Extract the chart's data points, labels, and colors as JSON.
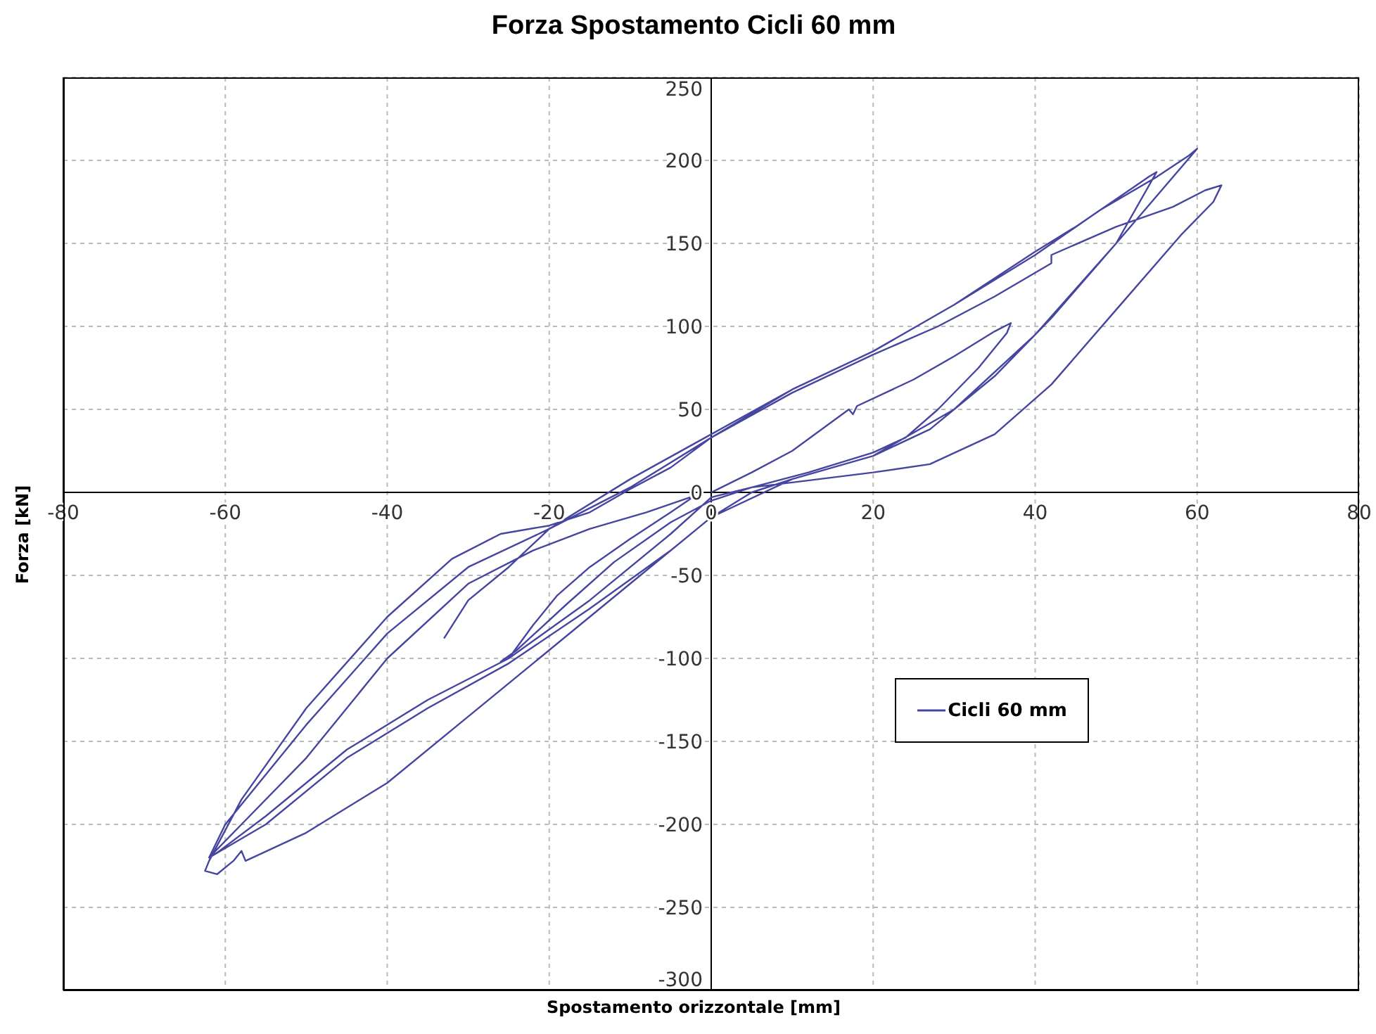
{
  "chart_data": {
    "type": "line",
    "title": "Forza Spostamento Cicli 60 mm",
    "xlabel": "Spostamento orizzontale [mm]",
    "ylabel": "Forza [kN]",
    "xlim": [
      -80,
      80
    ],
    "ylim": [
      -300,
      250
    ],
    "xticks": [
      -80,
      -60,
      -40,
      -20,
      0,
      20,
      40,
      60,
      80
    ],
    "yticks": [
      -300,
      -250,
      -200,
      -150,
      -100,
      -50,
      0,
      50,
      100,
      150,
      200,
      250
    ],
    "grid": true,
    "legend": "right",
    "series": [
      {
        "name": "Cicli 60 mm",
        "color": "#4646a0",
        "x": [
          0,
          5,
          10,
          17,
          17.5,
          18,
          25,
          30,
          35,
          37,
          36.5,
          33,
          28,
          24,
          20,
          12,
          5,
          0,
          -5,
          -12,
          -18,
          -24,
          -26,
          -25,
          -22,
          -19,
          -15,
          -10,
          -5,
          -2,
          -8,
          -15,
          -22,
          -30,
          -40,
          -50,
          -58,
          -62,
          -61,
          -55,
          -45,
          -35,
          -25,
          -15,
          -5,
          0,
          5,
          10,
          20,
          27,
          35,
          42,
          50,
          58,
          62,
          63,
          61,
          57,
          50,
          42,
          42,
          35,
          28,
          20,
          10,
          0,
          -5,
          -10,
          -15,
          -20,
          -26,
          -32,
          -40,
          -50,
          -58,
          -62,
          -62.5,
          -61,
          -59,
          -58,
          -57.5,
          -50,
          -40,
          -30,
          -20,
          -10,
          0,
          5,
          10,
          20,
          30,
          40,
          50,
          60,
          59,
          55,
          48,
          40,
          30,
          20,
          10,
          0,
          -10,
          -20,
          -30,
          -40,
          -50,
          -60,
          -62,
          -55,
          -45,
          -35,
          -25,
          -15,
          -5,
          0,
          10,
          20,
          27,
          35,
          42,
          50,
          55,
          54,
          45,
          40,
          30,
          20,
          10,
          0,
          -10,
          -20,
          -25,
          -30,
          -33
        ],
        "values": [
          0,
          12,
          25,
          50,
          47,
          52,
          68,
          82,
          97,
          102,
          96,
          75,
          50,
          33,
          24,
          12,
          3,
          -5,
          -18,
          -42,
          -68,
          -95,
          -102,
          -100,
          -80,
          -62,
          -45,
          -28,
          -12,
          -2,
          -12,
          -22,
          -35,
          -55,
          -100,
          -160,
          -200,
          -220,
          -217,
          -195,
          -155,
          -125,
          -100,
          -65,
          -25,
          -3,
          3,
          6,
          12,
          17,
          35,
          65,
          110,
          155,
          175,
          185,
          182,
          172,
          160,
          143,
          138,
          118,
          100,
          83,
          60,
          33,
          15,
          2,
          -12,
          -20,
          -25,
          -40,
          -75,
          -130,
          -185,
          -222,
          -228,
          -230,
          -222,
          -216,
          -222,
          -205,
          -175,
          -135,
          -95,
          -55,
          -15,
          0,
          8,
          22,
          50,
          95,
          150,
          207,
          203,
          190,
          170,
          143,
          113,
          85,
          62,
          33,
          3,
          -22,
          -45,
          -85,
          -140,
          -200,
          -220,
          -200,
          -160,
          -130,
          -103,
          -70,
          -35,
          -15,
          8,
          22,
          38,
          70,
          105,
          150,
          193,
          190,
          160,
          145,
          113,
          85,
          62,
          35,
          8,
          -22,
          -45,
          -65,
          -88
        ]
      }
    ]
  }
}
